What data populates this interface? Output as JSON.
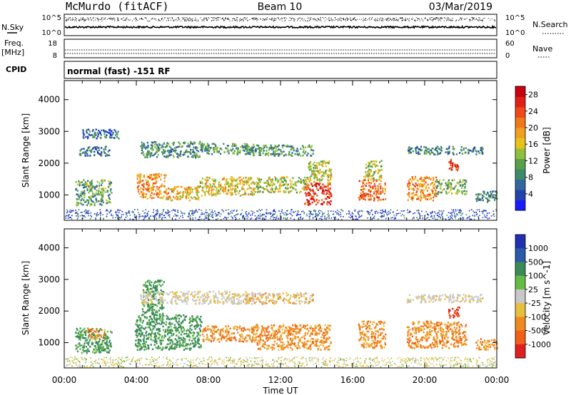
{
  "header": {
    "station": "McMurdo (fitACF)",
    "beam": "Beam 10",
    "date": "03/Mar/2019"
  },
  "aux_panels": {
    "nsky_label": "N.Sky",
    "nsky_ticks": [
      "10^5",
      "10^0"
    ],
    "nsearch_label": "N.Search",
    "nsearch_ticks": [
      "10^5",
      "10^0"
    ],
    "freq_label": "Freq.",
    "freq_unit": "[MHz]",
    "freq_ticks": [
      "18",
      "8"
    ],
    "nave_label": "Nave",
    "nave_ticks": [
      "60",
      "0"
    ],
    "cpid_label": "CPID",
    "cpid_value": "normal (fast) -151 RF"
  },
  "chart_data": [
    {
      "type": "heatmap",
      "parameter": "Power",
      "ylabel": "Slant Range [km]",
      "xlabel": "Time UT",
      "x_ticks": [
        "00:00",
        "04:00",
        "08:00",
        "12:00",
        "16:00",
        "20:00",
        "00:00"
      ],
      "y_ticks": [
        "1000",
        "2000",
        "3000",
        "4000"
      ],
      "ylim": [
        200,
        4600
      ],
      "xlim_hours": [
        0,
        24
      ],
      "colorbar": {
        "label": "Power [dB]",
        "ticks": [
          "4",
          "8",
          "12",
          "16",
          "20",
          "24",
          "28"
        ],
        "range": [
          0,
          30
        ],
        "colors": [
          "#1a1aff",
          "#2244aa",
          "#33669f",
          "#3d8a6a",
          "#5aa04a",
          "#8fc03c",
          "#e8c21a",
          "#f0a020",
          "#f07818",
          "#f04818",
          "#e02018",
          "#c80010"
        ]
      },
      "regions": [
        {
          "t": [
            0.6,
            2.6
          ],
          "r": [
            700,
            1500
          ],
          "v": 11
        },
        {
          "t": [
            0.8,
            2.5
          ],
          "r": [
            2250,
            2550
          ],
          "v": 7
        },
        {
          "t": [
            1.0,
            3.0
          ],
          "r": [
            2800,
            3100
          ],
          "v": 6
        },
        {
          "t": [
            4.0,
            5.6
          ],
          "r": [
            900,
            1700
          ],
          "v": 20
        },
        {
          "t": [
            5.6,
            7.5
          ],
          "r": [
            850,
            1300
          ],
          "v": 18
        },
        {
          "t": [
            7.5,
            10.5
          ],
          "r": [
            1000,
            1600
          ],
          "v": 16
        },
        {
          "t": [
            4.2,
            7.5
          ],
          "r": [
            2200,
            2700
          ],
          "v": 9
        },
        {
          "t": [
            7.5,
            10.5
          ],
          "r": [
            2300,
            2650
          ],
          "v": 10
        },
        {
          "t": [
            10.5,
            13.5
          ],
          "r": [
            1100,
            1600
          ],
          "v": 14
        },
        {
          "t": [
            13.3,
            14.8
          ],
          "r": [
            700,
            1400
          ],
          "v": 26
        },
        {
          "t": [
            13.5,
            14.8
          ],
          "r": [
            1400,
            2100
          ],
          "v": 15
        },
        {
          "t": [
            10.0,
            13.8
          ],
          "r": [
            2250,
            2600
          ],
          "v": 10
        },
        {
          "t": [
            16.3,
            17.8
          ],
          "r": [
            850,
            1500
          ],
          "v": 22
        },
        {
          "t": [
            16.6,
            17.6
          ],
          "r": [
            1500,
            2100
          ],
          "v": 14
        },
        {
          "t": [
            19.0,
            20.6
          ],
          "r": [
            850,
            1600
          ],
          "v": 20
        },
        {
          "t": [
            20.6,
            22.3
          ],
          "r": [
            1050,
            1500
          ],
          "v": 12
        },
        {
          "t": [
            19.0,
            23.2
          ],
          "r": [
            2300,
            2550
          ],
          "v": 8
        },
        {
          "t": [
            21.3,
            21.9
          ],
          "r": [
            1800,
            2150
          ],
          "v": 25
        },
        {
          "t": [
            22.8,
            24.0
          ],
          "r": [
            800,
            1150
          ],
          "v": 8
        }
      ]
    },
    {
      "type": "heatmap",
      "parameter": "Velocity",
      "ylabel": "Slant Range [km]",
      "xlabel": "Time UT",
      "x_ticks": [
        "00:00",
        "04:00",
        "08:00",
        "12:00",
        "16:00",
        "20:00",
        "00:00"
      ],
      "y_ticks": [
        "1000",
        "2000",
        "3000",
        "4000"
      ],
      "ylim": [
        200,
        4600
      ],
      "xlim_hours": [
        0,
        24
      ],
      "colorbar": {
        "label": "Velocity [m s^-1]",
        "ticks": [
          "1000",
          "500",
          "100",
          "25",
          "-25",
          "-100",
          "-500",
          "-1000"
        ],
        "colors": [
          "#2030b0",
          "#2a5aa8",
          "#3a8a5a",
          "#66bb44",
          "#c8c8c8",
          "#e8c040",
          "#f08a20",
          "#f06018",
          "#e02020"
        ]
      },
      "regions": [
        {
          "t": [
            0.6,
            2.6
          ],
          "r": [
            700,
            1500
          ],
          "v": "toward"
        },
        {
          "t": [
            1.2,
            2.2
          ],
          "r": [
            1150,
            1450
          ],
          "v": "away"
        },
        {
          "t": [
            3.9,
            7.6
          ],
          "r": [
            800,
            1900
          ],
          "v": "toward"
        },
        {
          "t": [
            4.3,
            5.5
          ],
          "r": [
            1900,
            3000
          ],
          "v": "toward"
        },
        {
          "t": [
            7.6,
            10.6
          ],
          "r": [
            1050,
            1550
          ],
          "v": "away"
        },
        {
          "t": [
            10.6,
            14.8
          ],
          "r": [
            800,
            1600
          ],
          "v": "away"
        },
        {
          "t": [
            4.2,
            10.5
          ],
          "r": [
            2250,
            2650
          ],
          "v": "zero"
        },
        {
          "t": [
            10.0,
            13.8
          ],
          "r": [
            2250,
            2600
          ],
          "v": "slow"
        },
        {
          "t": [
            16.3,
            17.8
          ],
          "r": [
            850,
            1700
          ],
          "v": "away"
        },
        {
          "t": [
            19.0,
            22.3
          ],
          "r": [
            850,
            1700
          ],
          "v": "away"
        },
        {
          "t": [
            19.0,
            23.2
          ],
          "r": [
            2300,
            2550
          ],
          "v": "zero"
        },
        {
          "t": [
            21.3,
            21.9
          ],
          "r": [
            1800,
            2150
          ],
          "v": "strong_away"
        },
        {
          "t": [
            22.8,
            24.0
          ],
          "r": [
            800,
            1150
          ],
          "v": "away"
        }
      ]
    }
  ]
}
